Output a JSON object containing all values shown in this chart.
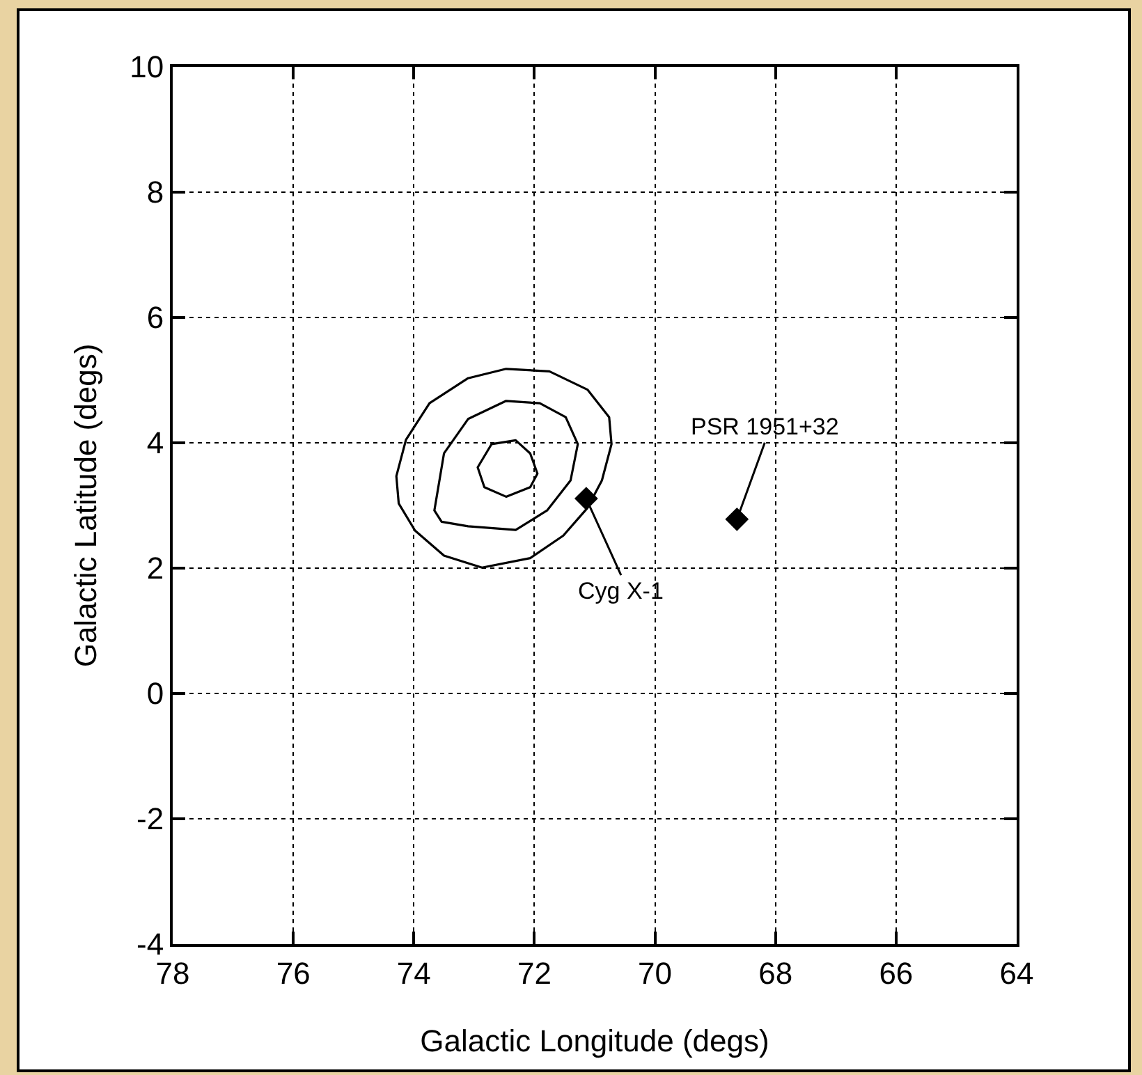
{
  "chart_data": {
    "type": "scatter",
    "xlabel": "Galactic Longitude (degs)",
    "ylabel": "Galactic Latitude (degs)",
    "xlim": [
      78,
      64
    ],
    "xticks": [
      78,
      76,
      74,
      72,
      70,
      68,
      66,
      64
    ],
    "ylim": [
      -4,
      10
    ],
    "yticks": [
      -4,
      -2,
      0,
      2,
      4,
      6,
      8,
      10
    ],
    "grid": true,
    "marker": "diamond",
    "series": [
      {
        "color": "#000000",
        "x": [
          71.14,
          68.64
        ],
        "values": [
          3.11,
          2.78
        ]
      }
    ],
    "annotations": [
      {
        "text": "Cyg X-1",
        "x": 71.14,
        "y": 3.11
      },
      {
        "text": "PSR 1951+32",
        "x": 68.64,
        "y": 2.78
      }
    ]
  }
}
